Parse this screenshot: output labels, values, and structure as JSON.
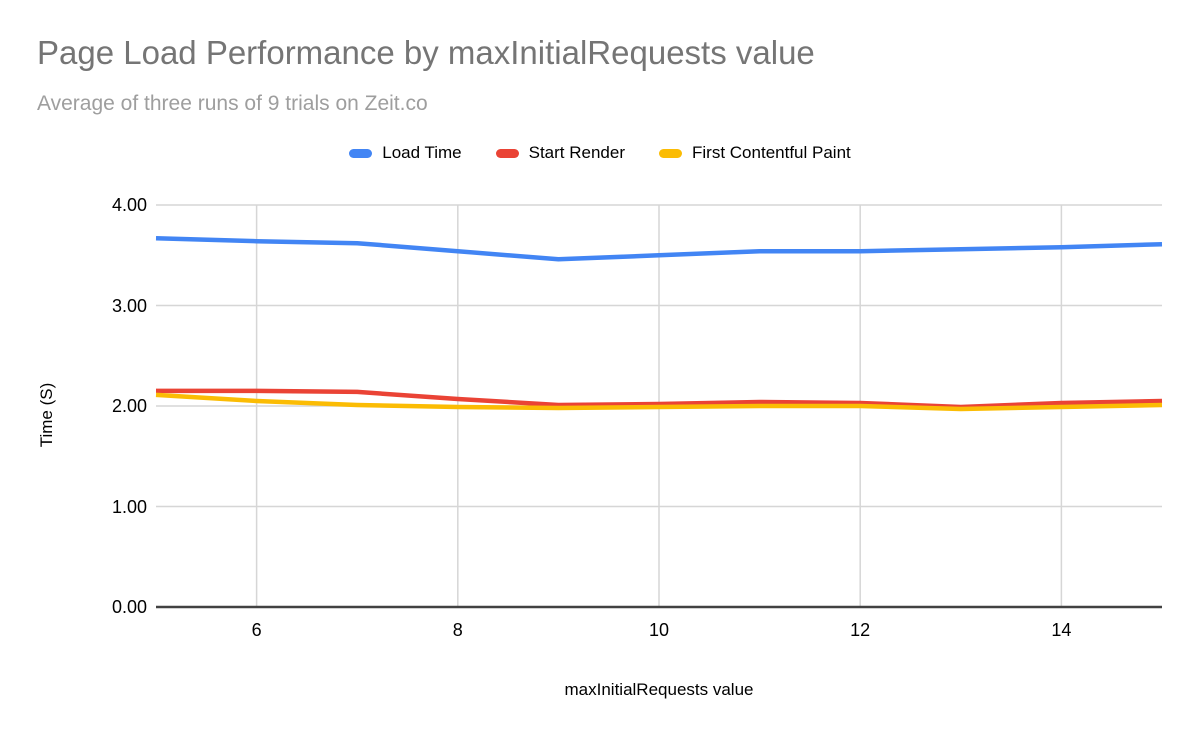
{
  "header": {
    "title": "Page Load Performance by maxInitialRequests value",
    "subtitle": "Average of three runs of 9 trials on Zeit.co"
  },
  "chart_data": {
    "type": "line",
    "title": "Page Load Performance by maxInitialRequests value",
    "subtitle": "Average of three runs of 9 trials on Zeit.co",
    "xlabel": "maxInitialRequests value",
    "ylabel": "Time (S)",
    "x": [
      5,
      6,
      7,
      8,
      9,
      10,
      11,
      12,
      13,
      14,
      15
    ],
    "series": [
      {
        "name": "Load Time",
        "color": "#4285f4",
        "values": [
          3.67,
          3.64,
          3.62,
          3.54,
          3.46,
          3.5,
          3.54,
          3.54,
          3.56,
          3.58,
          3.61
        ]
      },
      {
        "name": "Start Render",
        "color": "#ea4335",
        "values": [
          2.15,
          2.15,
          2.14,
          2.07,
          2.01,
          2.02,
          2.04,
          2.03,
          1.99,
          2.03,
          2.05
        ]
      },
      {
        "name": "First Contentful Paint",
        "color": "#fbbc04",
        "values": [
          2.11,
          2.05,
          2.01,
          1.99,
          1.98,
          1.99,
          2.0,
          2.0,
          1.97,
          1.99,
          2.01
        ]
      }
    ],
    "xlim": [
      5,
      15
    ],
    "ylim": [
      0,
      4
    ],
    "x_ticks": [
      6,
      8,
      10,
      12,
      14
    ],
    "y_ticks": [
      {
        "value": 0,
        "label": "0.00"
      },
      {
        "value": 1,
        "label": "1.00"
      },
      {
        "value": 2,
        "label": "2.00"
      },
      {
        "value": 3,
        "label": "3.00"
      },
      {
        "value": 4,
        "label": "4.00"
      }
    ],
    "grid": true,
    "legend_position": "top",
    "styles": {
      "gridline_color": "#d6d6d6",
      "axis_line_color": "#424242",
      "title_color": "#757575",
      "subtitle_color": "#9e9e9e",
      "tick_label_color": "#000000"
    }
  }
}
